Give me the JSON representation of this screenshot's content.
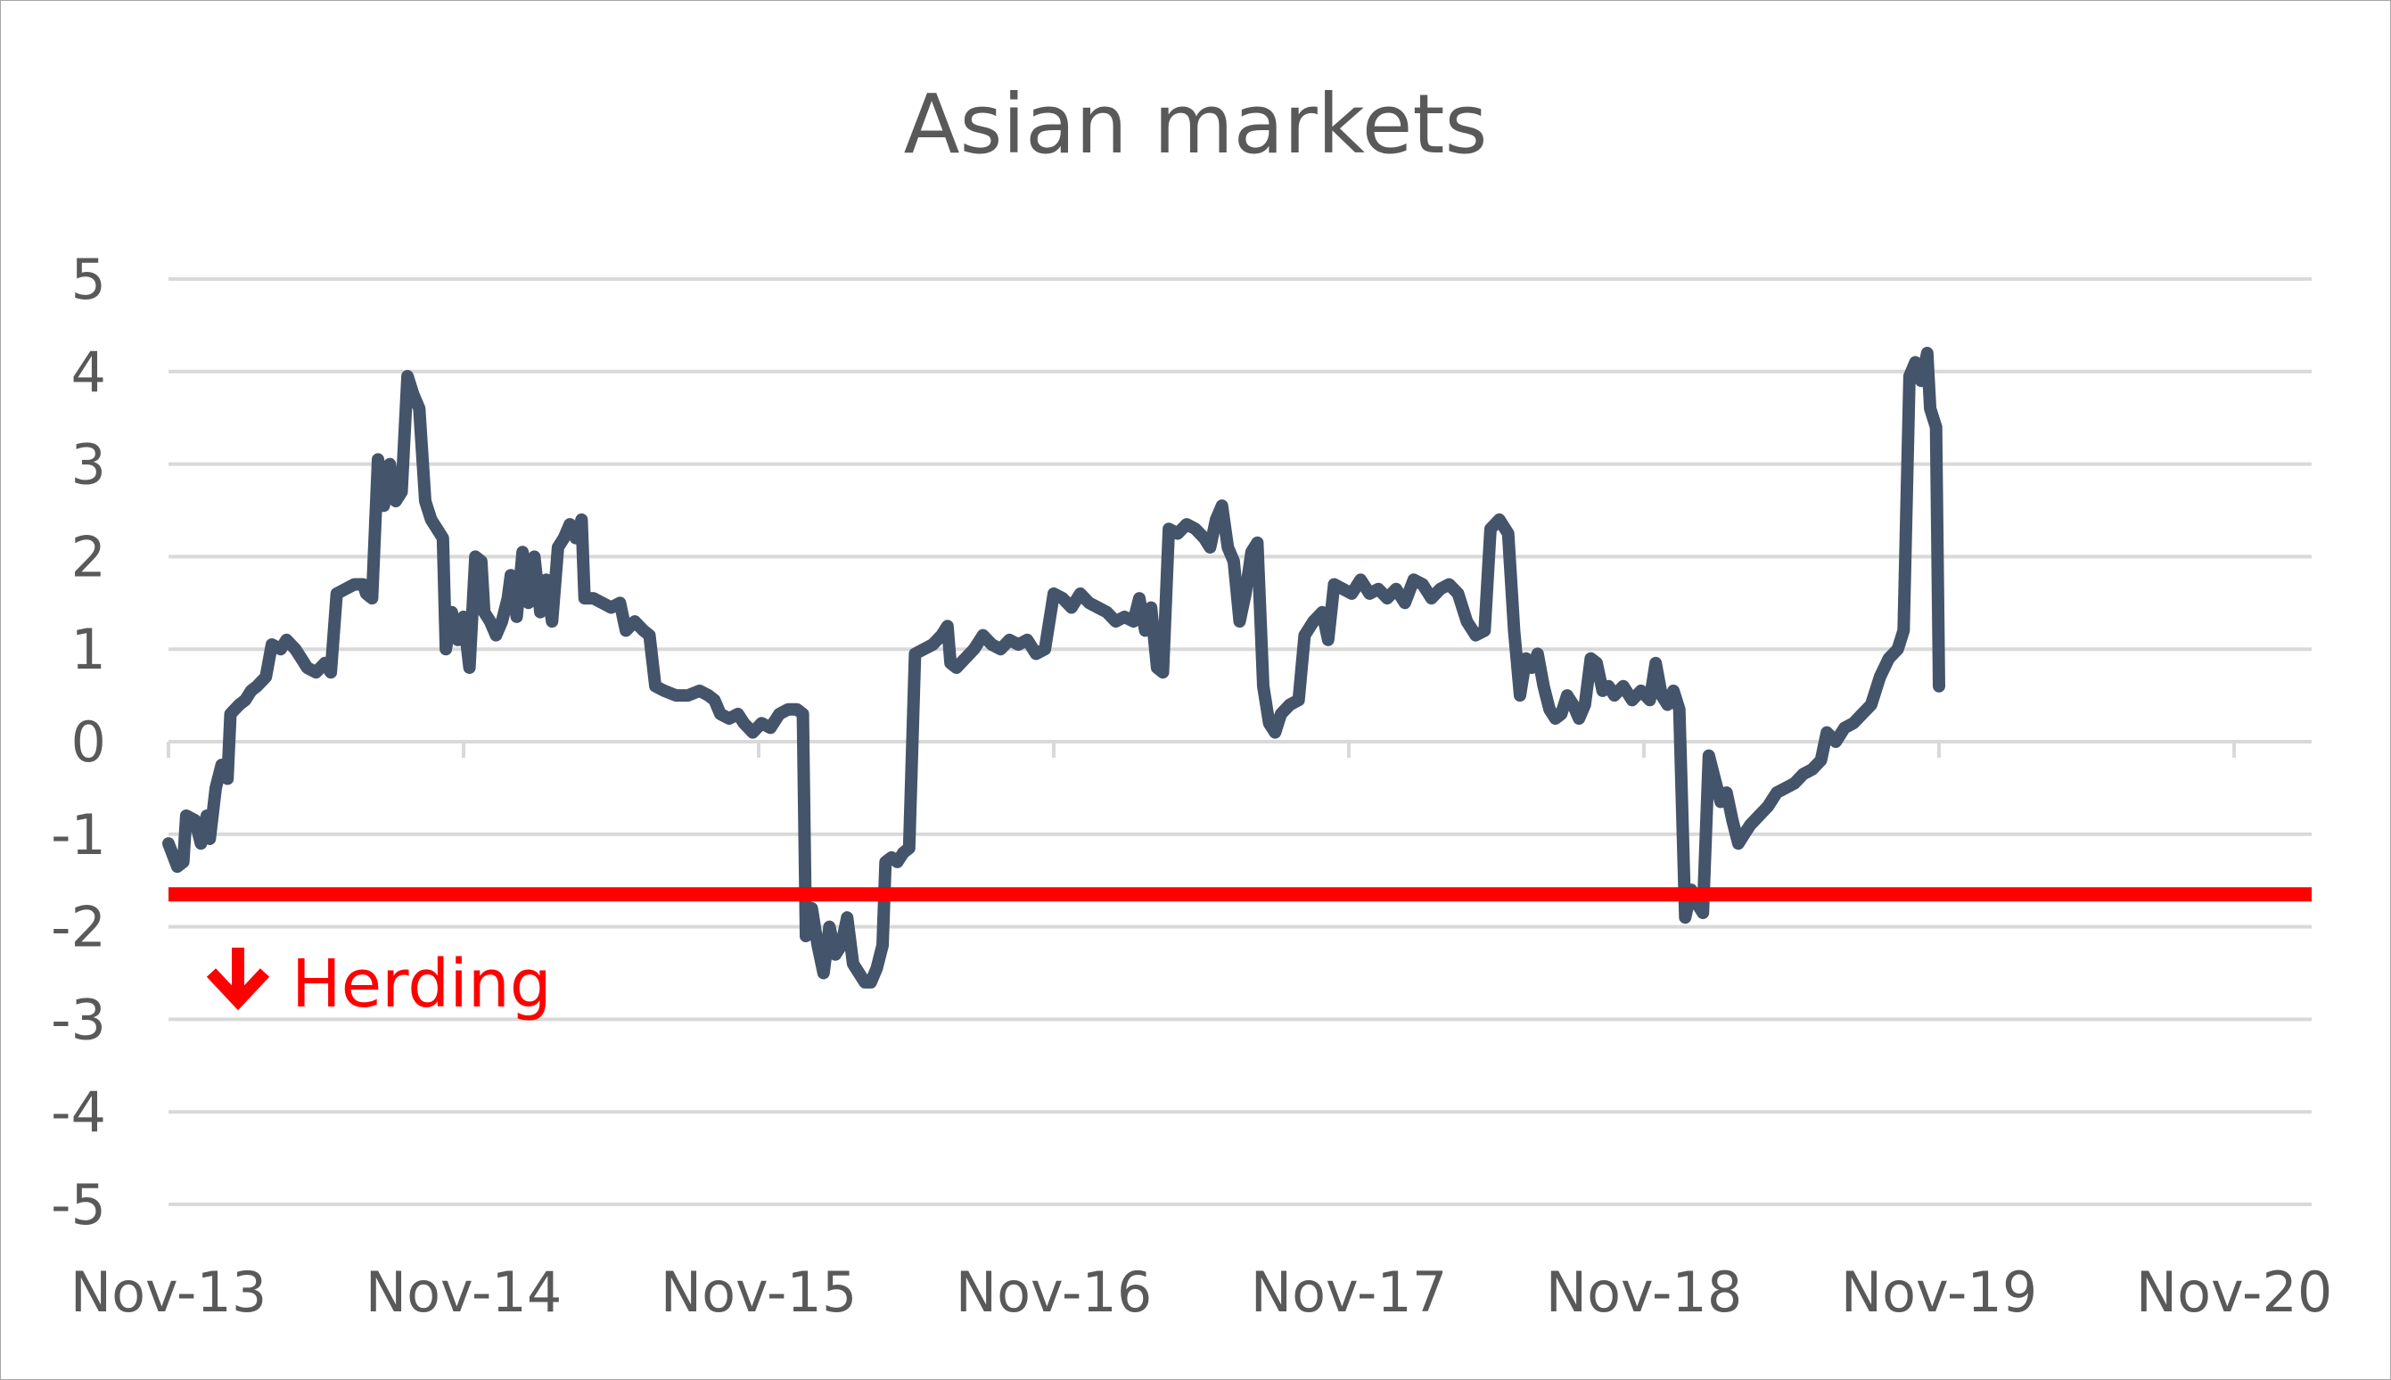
{
  "chart_data": {
    "type": "line",
    "title": "Asian markets",
    "xlabel": "",
    "ylabel": "",
    "ylim": [
      -5,
      5
    ],
    "xlim": [
      0,
      7.3
    ],
    "x_unit": "years since Nov-13",
    "x_tick_labels": [
      "Nov-13",
      "Nov-14",
      "Nov-15",
      "Nov-16",
      "Nov-17",
      "Nov-18",
      "Nov-19",
      "Nov-20"
    ],
    "y_ticks": [
      5,
      4,
      3,
      2,
      1,
      0,
      -1,
      -2,
      -3,
      -4,
      -5
    ],
    "grid": true,
    "legend": "none",
    "series": [
      {
        "color": "#44546a",
        "points": [
          [
            0.0,
            -1.1
          ],
          [
            0.03,
            -1.35
          ],
          [
            0.05,
            -1.3
          ],
          [
            0.06,
            -0.8
          ],
          [
            0.09,
            -0.85
          ],
          [
            0.11,
            -1.1
          ],
          [
            0.13,
            -0.8
          ],
          [
            0.14,
            -1.05
          ],
          [
            0.16,
            -0.5
          ],
          [
            0.18,
            -0.25
          ],
          [
            0.2,
            -0.4
          ],
          [
            0.21,
            0.3
          ],
          [
            0.24,
            0.4
          ],
          [
            0.26,
            0.45
          ],
          [
            0.28,
            0.55
          ],
          [
            0.3,
            0.6
          ],
          [
            0.33,
            0.7
          ],
          [
            0.35,
            1.05
          ],
          [
            0.38,
            1.0
          ],
          [
            0.4,
            1.1
          ],
          [
            0.43,
            1.0
          ],
          [
            0.45,
            0.9
          ],
          [
            0.47,
            0.8
          ],
          [
            0.5,
            0.75
          ],
          [
            0.53,
            0.85
          ],
          [
            0.55,
            0.75
          ],
          [
            0.57,
            1.6
          ],
          [
            0.6,
            1.65
          ],
          [
            0.63,
            1.7
          ],
          [
            0.66,
            1.7
          ],
          [
            0.67,
            1.6
          ],
          [
            0.69,
            1.55
          ],
          [
            0.71,
            3.05
          ],
          [
            0.73,
            2.55
          ],
          [
            0.75,
            3.0
          ],
          [
            0.77,
            2.6
          ],
          [
            0.79,
            2.7
          ],
          [
            0.81,
            3.95
          ],
          [
            0.83,
            3.75
          ],
          [
            0.85,
            3.6
          ],
          [
            0.87,
            2.6
          ],
          [
            0.89,
            2.4
          ],
          [
            0.91,
            2.3
          ],
          [
            0.93,
            2.2
          ],
          [
            0.94,
            1.0
          ],
          [
            0.96,
            1.4
          ],
          [
            0.98,
            1.1
          ],
          [
            1.0,
            1.35
          ],
          [
            1.02,
            0.8
          ],
          [
            1.04,
            2.0
          ],
          [
            1.06,
            1.95
          ],
          [
            1.07,
            1.4
          ],
          [
            1.09,
            1.3
          ],
          [
            1.11,
            1.15
          ],
          [
            1.13,
            1.3
          ],
          [
            1.15,
            1.55
          ],
          [
            1.16,
            1.8
          ],
          [
            1.18,
            1.35
          ],
          [
            1.2,
            2.05
          ],
          [
            1.22,
            1.5
          ],
          [
            1.24,
            2.0
          ],
          [
            1.26,
            1.4
          ],
          [
            1.28,
            1.75
          ],
          [
            1.3,
            1.3
          ],
          [
            1.32,
            2.1
          ],
          [
            1.34,
            2.2
          ],
          [
            1.36,
            2.35
          ],
          [
            1.38,
            2.2
          ],
          [
            1.4,
            2.4
          ],
          [
            1.41,
            1.55
          ],
          [
            1.44,
            1.55
          ],
          [
            1.47,
            1.5
          ],
          [
            1.5,
            1.45
          ],
          [
            1.53,
            1.5
          ],
          [
            1.55,
            1.2
          ],
          [
            1.58,
            1.3
          ],
          [
            1.61,
            1.2
          ],
          [
            1.63,
            1.15
          ],
          [
            1.65,
            0.6
          ],
          [
            1.68,
            0.55
          ],
          [
            1.72,
            0.5
          ],
          [
            1.76,
            0.5
          ],
          [
            1.8,
            0.55
          ],
          [
            1.83,
            0.5
          ],
          [
            1.85,
            0.45
          ],
          [
            1.87,
            0.3
          ],
          [
            1.9,
            0.25
          ],
          [
            1.93,
            0.3
          ],
          [
            1.95,
            0.2
          ],
          [
            1.98,
            0.1
          ],
          [
            2.01,
            0.2
          ],
          [
            2.04,
            0.15
          ],
          [
            2.07,
            0.3
          ],
          [
            2.1,
            0.35
          ],
          [
            2.13,
            0.35
          ],
          [
            2.15,
            0.3
          ],
          [
            2.16,
            -2.1
          ],
          [
            2.18,
            -1.8
          ],
          [
            2.2,
            -2.2
          ],
          [
            2.22,
            -2.5
          ],
          [
            2.24,
            -2.0
          ],
          [
            2.26,
            -2.3
          ],
          [
            2.28,
            -2.2
          ],
          [
            2.3,
            -1.9
          ],
          [
            2.32,
            -2.4
          ],
          [
            2.34,
            -2.5
          ],
          [
            2.36,
            -2.6
          ],
          [
            2.38,
            -2.6
          ],
          [
            2.4,
            -2.45
          ],
          [
            2.42,
            -2.2
          ],
          [
            2.43,
            -1.3
          ],
          [
            2.45,
            -1.25
          ],
          [
            2.47,
            -1.3
          ],
          [
            2.49,
            -1.2
          ],
          [
            2.51,
            -1.15
          ],
          [
            2.53,
            0.95
          ],
          [
            2.56,
            1.0
          ],
          [
            2.59,
            1.05
          ],
          [
            2.62,
            1.15
          ],
          [
            2.64,
            1.25
          ],
          [
            2.65,
            0.85
          ],
          [
            2.67,
            0.8
          ],
          [
            2.7,
            0.9
          ],
          [
            2.73,
            1.0
          ],
          [
            2.76,
            1.15
          ],
          [
            2.79,
            1.05
          ],
          [
            2.82,
            1.0
          ],
          [
            2.85,
            1.1
          ],
          [
            2.88,
            1.05
          ],
          [
            2.91,
            1.1
          ],
          [
            2.94,
            0.95
          ],
          [
            2.97,
            1.0
          ],
          [
            3.0,
            1.6
          ],
          [
            3.03,
            1.55
          ],
          [
            3.06,
            1.45
          ],
          [
            3.09,
            1.6
          ],
          [
            3.12,
            1.5
          ],
          [
            3.15,
            1.45
          ],
          [
            3.18,
            1.4
          ],
          [
            3.21,
            1.3
          ],
          [
            3.24,
            1.35
          ],
          [
            3.27,
            1.3
          ],
          [
            3.29,
            1.55
          ],
          [
            3.31,
            1.2
          ],
          [
            3.33,
            1.45
          ],
          [
            3.35,
            0.8
          ],
          [
            3.37,
            0.75
          ],
          [
            3.39,
            2.3
          ],
          [
            3.42,
            2.25
          ],
          [
            3.45,
            2.35
          ],
          [
            3.48,
            2.3
          ],
          [
            3.51,
            2.2
          ],
          [
            3.53,
            2.1
          ],
          [
            3.55,
            2.4
          ],
          [
            3.57,
            2.55
          ],
          [
            3.59,
            2.1
          ],
          [
            3.61,
            1.95
          ],
          [
            3.63,
            1.3
          ],
          [
            3.65,
            1.6
          ],
          [
            3.67,
            2.05
          ],
          [
            3.69,
            2.15
          ],
          [
            3.71,
            0.6
          ],
          [
            3.73,
            0.2
          ],
          [
            3.75,
            0.1
          ],
          [
            3.77,
            0.3
          ],
          [
            3.8,
            0.4
          ],
          [
            3.83,
            0.45
          ],
          [
            3.85,
            1.15
          ],
          [
            3.88,
            1.3
          ],
          [
            3.91,
            1.4
          ],
          [
            3.93,
            1.1
          ],
          [
            3.95,
            1.7
          ],
          [
            3.98,
            1.65
          ],
          [
            4.01,
            1.6
          ],
          [
            4.04,
            1.75
          ],
          [
            4.07,
            1.6
          ],
          [
            4.1,
            1.65
          ],
          [
            4.13,
            1.55
          ],
          [
            4.16,
            1.65
          ],
          [
            4.19,
            1.5
          ],
          [
            4.22,
            1.75
          ],
          [
            4.25,
            1.7
          ],
          [
            4.28,
            1.55
          ],
          [
            4.31,
            1.65
          ],
          [
            4.34,
            1.7
          ],
          [
            4.37,
            1.6
          ],
          [
            4.4,
            1.3
          ],
          [
            4.43,
            1.15
          ],
          [
            4.46,
            1.2
          ],
          [
            4.48,
            2.3
          ],
          [
            4.51,
            2.4
          ],
          [
            4.54,
            2.25
          ],
          [
            4.56,
            1.2
          ],
          [
            4.58,
            0.5
          ],
          [
            4.6,
            0.9
          ],
          [
            4.62,
            0.8
          ],
          [
            4.64,
            0.95
          ],
          [
            4.66,
            0.6
          ],
          [
            4.68,
            0.35
          ],
          [
            4.7,
            0.25
          ],
          [
            4.72,
            0.3
          ],
          [
            4.74,
            0.5
          ],
          [
            4.76,
            0.4
          ],
          [
            4.78,
            0.25
          ],
          [
            4.8,
            0.4
          ],
          [
            4.82,
            0.9
          ],
          [
            4.84,
            0.85
          ],
          [
            4.86,
            0.55
          ],
          [
            4.88,
            0.6
          ],
          [
            4.9,
            0.5
          ],
          [
            4.93,
            0.6
          ],
          [
            4.96,
            0.45
          ],
          [
            4.99,
            0.55
          ],
          [
            5.02,
            0.45
          ],
          [
            5.04,
            0.85
          ],
          [
            5.06,
            0.5
          ],
          [
            5.08,
            0.4
          ],
          [
            5.1,
            0.55
          ],
          [
            5.12,
            0.35
          ],
          [
            5.14,
            -1.9
          ],
          [
            5.16,
            -1.6
          ],
          [
            5.18,
            -1.75
          ],
          [
            5.2,
            -1.85
          ],
          [
            5.22,
            -0.15
          ],
          [
            5.24,
            -0.4
          ],
          [
            5.26,
            -0.65
          ],
          [
            5.28,
            -0.55
          ],
          [
            5.3,
            -0.85
          ],
          [
            5.32,
            -1.1
          ],
          [
            5.34,
            -1.0
          ],
          [
            5.36,
            -0.9
          ],
          [
            5.39,
            -0.8
          ],
          [
            5.42,
            -0.7
          ],
          [
            5.45,
            -0.55
          ],
          [
            5.48,
            -0.5
          ],
          [
            5.51,
            -0.45
          ],
          [
            5.54,
            -0.35
          ],
          [
            5.57,
            -0.3
          ],
          [
            5.6,
            -0.2
          ],
          [
            5.62,
            0.1
          ],
          [
            5.65,
            0.0
          ],
          [
            5.68,
            0.15
          ],
          [
            5.71,
            0.2
          ],
          [
            5.74,
            0.3
          ],
          [
            5.77,
            0.4
          ],
          [
            5.8,
            0.7
          ],
          [
            5.83,
            0.9
          ],
          [
            5.86,
            1.0
          ],
          [
            5.88,
            1.2
          ],
          [
            5.9,
            3.95
          ],
          [
            5.92,
            4.1
          ],
          [
            5.94,
            3.9
          ],
          [
            5.96,
            4.2
          ],
          [
            5.97,
            3.6
          ],
          [
            5.99,
            3.4
          ],
          [
            6.0,
            0.6
          ]
        ]
      }
    ],
    "threshold": {
      "value": -1.65,
      "color": "#ff0000",
      "label": "Herding",
      "label_icon": "down-arrow-icon"
    }
  }
}
